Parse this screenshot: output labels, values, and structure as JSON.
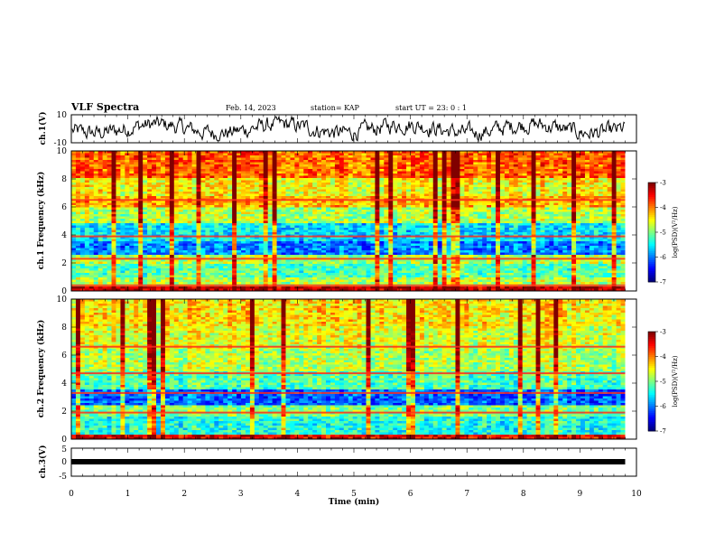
{
  "header": {
    "title": "VLF Spectra",
    "date": "Feb. 14, 2023",
    "station": "station= KAP",
    "start_ut": "start  UT =   23: 0  : 1"
  },
  "chart_data": [
    {
      "type": "line",
      "panel": "ch1-waveform",
      "ylabel": "ch.1(V)",
      "ylim": [
        -10,
        10
      ],
      "yticks": [
        "10",
        "-10"
      ],
      "xlim": [
        0,
        10
      ],
      "data_extent_min": 9.8,
      "series_color": "#000000"
    },
    {
      "type": "heatmap",
      "panel": "ch1-spectrogram",
      "ylabel": "ch.1  Frequency (kHz)",
      "ylim": [
        0,
        10
      ],
      "yticks": [
        "0",
        "2",
        "4",
        "6",
        "8",
        "10"
      ],
      "xlim": [
        0,
        10
      ],
      "data_extent_min": 9.8,
      "colorbar": {
        "label": "log(PSD)(V²/Hz)",
        "range": [
          -7,
          -3
        ],
        "ticks": [
          "-3",
          "-4",
          "-5",
          "-6",
          "-7"
        ]
      },
      "bands_khz": [
        {
          "from": 0,
          "to": 0.4,
          "level": 0.95
        },
        {
          "from": 0.4,
          "to": 1.0,
          "level": 0.55
        },
        {
          "from": 1.0,
          "to": 2.0,
          "level": 0.45
        },
        {
          "from": 2.0,
          "to": 2.6,
          "level": 0.55
        },
        {
          "from": 2.6,
          "to": 3.6,
          "level": 0.25
        },
        {
          "from": 3.6,
          "to": 4.8,
          "level": 0.35
        },
        {
          "from": 4.8,
          "to": 6.0,
          "level": 0.55
        },
        {
          "from": 6.0,
          "to": 6.8,
          "level": 0.7
        },
        {
          "from": 6.8,
          "to": 8.0,
          "level": 0.62
        },
        {
          "from": 8.0,
          "to": 10.0,
          "level": 0.78
        }
      ],
      "lines_khz": [
        0.4,
        2.3,
        3.9,
        6.5
      ]
    },
    {
      "type": "heatmap",
      "panel": "ch2-spectrogram",
      "ylabel": "ch.2  Frequency (kHz)",
      "ylim": [
        0,
        10
      ],
      "yticks": [
        "0",
        "2",
        "4",
        "6",
        "8",
        "10"
      ],
      "xlim": [
        0,
        10
      ],
      "data_extent_min": 9.8,
      "colorbar": {
        "label": "log(PSD)(V²/Hz)",
        "range": [
          -7,
          -3
        ],
        "ticks": [
          "-3",
          "-4",
          "-5",
          "-6",
          "-7"
        ]
      },
      "bands_khz": [
        {
          "from": 0,
          "to": 0.4,
          "level": 0.9
        },
        {
          "from": 0.4,
          "to": 1.6,
          "level": 0.4
        },
        {
          "from": 1.6,
          "to": 2.4,
          "level": 0.5
        },
        {
          "from": 2.4,
          "to": 3.6,
          "level": 0.22
        },
        {
          "from": 3.6,
          "to": 4.8,
          "level": 0.45
        },
        {
          "from": 4.8,
          "to": 6.5,
          "level": 0.55
        },
        {
          "from": 6.5,
          "to": 8.0,
          "level": 0.6
        },
        {
          "from": 8.0,
          "to": 10.0,
          "level": 0.65
        }
      ],
      "lines_khz": [
        1.9,
        3.3,
        4.7,
        6.6
      ]
    },
    {
      "type": "line",
      "panel": "ch3-waveform",
      "ylabel": "ch.3(V)",
      "ylim": [
        -5,
        5
      ],
      "yticks": [
        "5",
        "0",
        "-5"
      ],
      "xlim": [
        0,
        10
      ],
      "data_extent_min": 9.8,
      "series_color": "#000000"
    }
  ],
  "x_axis": {
    "label": "Time  (min)",
    "ticks": [
      "0",
      "1",
      "2",
      "3",
      "4",
      "5",
      "6",
      "7",
      "8",
      "9",
      "10"
    ]
  }
}
